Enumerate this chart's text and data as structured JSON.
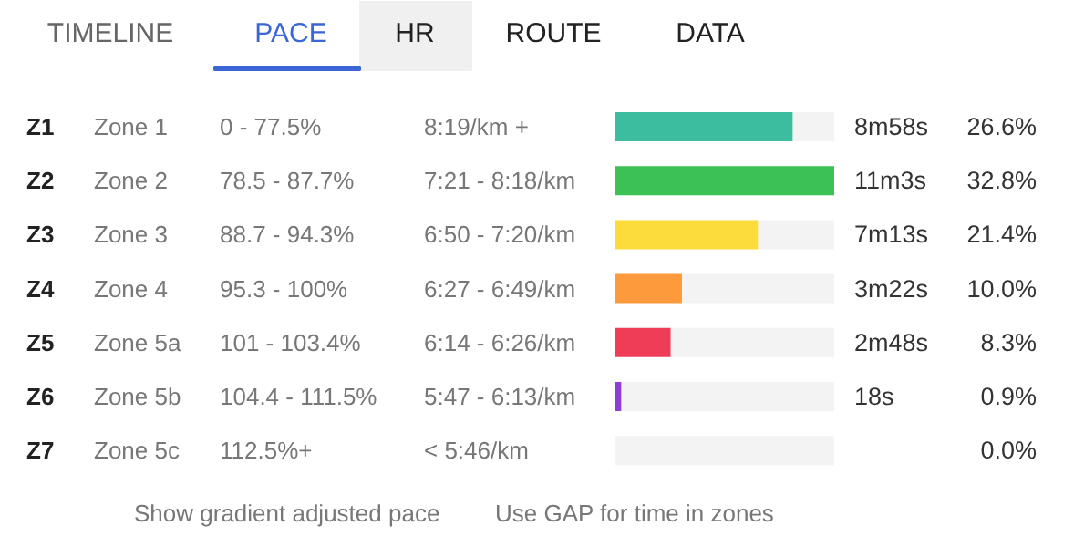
{
  "chart_data": {
    "type": "bar",
    "orientation": "horizontal",
    "categories": [
      "Z1",
      "Z2",
      "Z3",
      "Z4",
      "Z5",
      "Z6",
      "Z7"
    ],
    "stacked": true,
    "xlim": [
      0,
      32.8
    ],
    "series": [
      {
        "colors": [
          "#3dbda0",
          "#3cc254",
          "#fbdc3a",
          "#fd9a3c",
          "#ef3d58",
          "#8b3fd6",
          "#8b3fd6"
        ],
        "values": [
          26.6,
          32.8,
          21.4,
          10.0,
          8.3,
          0.9,
          0.0
        ],
        "value_labels": [
          "26.6%",
          "32.8%",
          "21.4%",
          "10.0%",
          "8.3%",
          "0.9%",
          "0.0%"
        ]
      },
      {
        "color": "#f3f3f3",
        "values": [
          6.2,
          0.0,
          11.4,
          22.8,
          24.5,
          31.9,
          32.8
        ]
      }
    ],
    "tick_labels": "y",
    "annotations": [
      "TIMELINE",
      "PACE",
      "HR",
      "ROUTE",
      "DATA",
      "Zone 1",
      "0 - 77.5%",
      "8:19/km +",
      "8m58s",
      "Zone 2",
      "78.5 - 87.7%",
      "7:21 - 8:18/km",
      "11m3s",
      "Zone 3",
      "88.7 - 94.3%",
      "6:50 - 7:20/km",
      "7m13s",
      "Zone 4",
      "95.3 - 100%",
      "6:27 - 6:49/km",
      "3m22s",
      "Zone 5a",
      "101 - 103.4%",
      "6:14 - 6:26/km",
      "2m48s",
      "Zone 5b",
      "104.4 - 111.5%",
      "5:47 - 6:13/km",
      "18s",
      "Zone 5c",
      "112.5%+",
      "< 5:46/km",
      null,
      "Show gradient adjusted pace",
      "Use GAP for time in zones"
    ]
  }
}
